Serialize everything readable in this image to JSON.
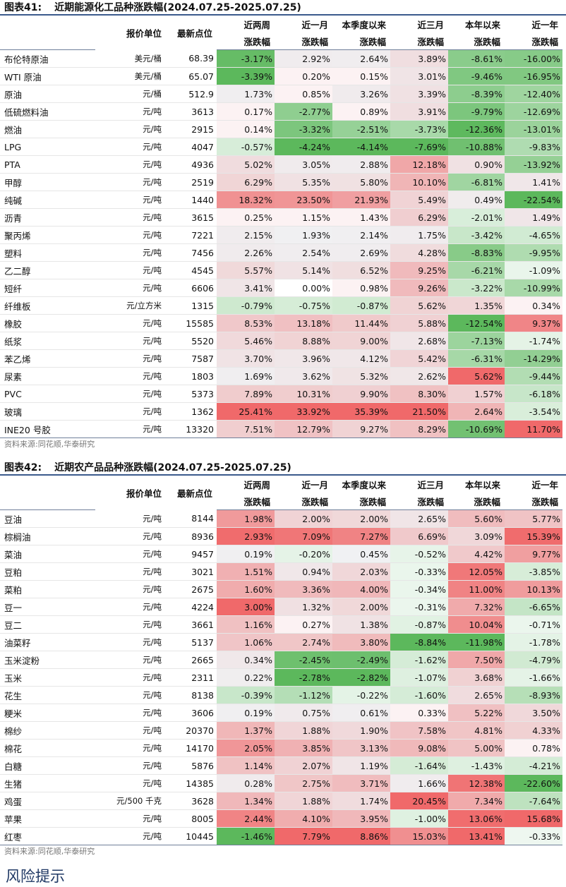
{
  "colors": {
    "title_rule": "#3b5a8c",
    "neg_strong": "#5cb85c",
    "pos_strong": "#f0696a",
    "risk_heading": "#1f3864"
  },
  "energy": {
    "title_label": "图表41:",
    "title_text": "近期能源化工品种涨跌幅(2024.07.25-2025.07.25)",
    "headers": {
      "unit": "报价单位",
      "price": "最新点位",
      "col1": [
        "近两周",
        "涨跌幅"
      ],
      "col2": [
        "近一月",
        "涨跌幅"
      ],
      "col3": [
        "本季度以来",
        "涨跌幅"
      ],
      "col4": [
        "近三月",
        "涨跌幅"
      ],
      "col5": [
        "本年以来",
        "涨跌幅"
      ],
      "col6": [
        "近一年",
        "涨跌幅"
      ]
    },
    "rows": [
      [
        "布伦特原油",
        "美元/桶",
        "68.39",
        "-3.17%",
        "2.92%",
        "2.64%",
        "3.89%",
        "-8.61%",
        "-16.00%"
      ],
      [
        "WTI 原油",
        "美元/桶",
        "65.07",
        "-3.39%",
        "0.20%",
        "0.15%",
        "3.01%",
        "-9.46%",
        "-16.95%"
      ],
      [
        "原油",
        "元/桶",
        "512.9",
        "1.73%",
        "0.85%",
        "3.26%",
        "3.39%",
        "-8.39%",
        "-12.40%"
      ],
      [
        "低硫燃料油",
        "元/吨",
        "3613",
        "0.17%",
        "-2.77%",
        "0.89%",
        "3.91%",
        "-9.79%",
        "-12.69%"
      ],
      [
        "燃油",
        "元/吨",
        "2915",
        "0.14%",
        "-3.32%",
        "-2.51%",
        "-3.73%",
        "-12.36%",
        "-13.01%"
      ],
      [
        "LPG",
        "元/吨",
        "4047",
        "-0.57%",
        "-4.24%",
        "-4.14%",
        "-7.69%",
        "-10.88%",
        "-9.83%"
      ],
      [
        "PTA",
        "元/吨",
        "4936",
        "5.02%",
        "3.05%",
        "2.88%",
        "12.18%",
        "0.90%",
        "-13.92%"
      ],
      [
        "甲醇",
        "元/吨",
        "2519",
        "6.29%",
        "5.35%",
        "5.80%",
        "10.10%",
        "-6.81%",
        "1.41%"
      ],
      [
        "纯碱",
        "元/吨",
        "1440",
        "18.32%",
        "23.50%",
        "21.93%",
        "5.49%",
        "0.49%",
        "-22.54%"
      ],
      [
        "沥青",
        "元/吨",
        "3615",
        "0.25%",
        "1.15%",
        "1.43%",
        "6.29%",
        "-2.01%",
        "1.49%"
      ],
      [
        "聚丙烯",
        "元/吨",
        "7221",
        "2.15%",
        "1.93%",
        "2.14%",
        "1.75%",
        "-3.42%",
        "-4.65%"
      ],
      [
        "塑料",
        "元/吨",
        "7456",
        "2.26%",
        "2.54%",
        "2.69%",
        "4.28%",
        "-8.83%",
        "-9.95%"
      ],
      [
        "乙二醇",
        "元/吨",
        "4545",
        "5.57%",
        "5.14%",
        "6.52%",
        "9.25%",
        "-6.21%",
        "-1.09%"
      ],
      [
        "短纤",
        "元/吨",
        "6606",
        "3.41%",
        "0.00%",
        "0.98%",
        "9.26%",
        "-3.22%",
        "-10.99%"
      ],
      [
        "纤维板",
        "元/立方米",
        "1315",
        "-0.79%",
        "-0.75%",
        "-0.87%",
        "5.62%",
        "1.35%",
        "0.34%"
      ],
      [
        "橡胶",
        "元/吨",
        "15585",
        "8.53%",
        "13.18%",
        "11.44%",
        "5.88%",
        "-12.54%",
        "9.37%"
      ],
      [
        "纸浆",
        "元/吨",
        "5520",
        "5.46%",
        "8.88%",
        "9.00%",
        "2.68%",
        "-7.13%",
        "-1.74%"
      ],
      [
        "苯乙烯",
        "元/吨",
        "7587",
        "3.70%",
        "3.96%",
        "4.12%",
        "5.42%",
        "-6.31%",
        "-14.29%"
      ],
      [
        "尿素",
        "元/吨",
        "1803",
        "1.69%",
        "3.62%",
        "5.32%",
        "2.62%",
        "5.62%",
        "-9.44%"
      ],
      [
        "PVC",
        "元/吨",
        "5373",
        "7.89%",
        "10.31%",
        "9.90%",
        "8.30%",
        "1.57%",
        "-6.18%"
      ],
      [
        "玻璃",
        "元/吨",
        "1362",
        "25.41%",
        "33.92%",
        "35.39%",
        "21.50%",
        "2.64%",
        "-3.54%"
      ],
      [
        "INE20 号胶",
        "元/吨",
        "13320",
        "7.51%",
        "12.79%",
        "9.27%",
        "8.29%",
        "-10.69%",
        "11.70%"
      ]
    ],
    "source": "资料来源:同花顺,华泰研究"
  },
  "agri": {
    "title_label": "图表42:",
    "title_text": "近期农产品品种涨跌幅(2024.07.25-2025.07.25)",
    "headers": {
      "unit": "报价单位",
      "price": "最新点位",
      "col1": [
        "近两周",
        "涨跌幅"
      ],
      "col2": [
        "近一月",
        "涨跌幅"
      ],
      "col3": [
        "本季度以来",
        "涨跌幅"
      ],
      "col4": [
        "近三月",
        "涨跌幅"
      ],
      "col5": [
        "本年以来",
        "涨跌幅"
      ],
      "col6": [
        "近一年",
        "涨跌幅"
      ]
    },
    "rows": [
      [
        "豆油",
        "元/吨",
        "8144",
        "1.98%",
        "2.00%",
        "2.00%",
        "2.65%",
        "5.60%",
        "5.77%"
      ],
      [
        "棕榈油",
        "元/吨",
        "8936",
        "2.93%",
        "7.09%",
        "7.27%",
        "6.69%",
        "3.09%",
        "15.39%"
      ],
      [
        "菜油",
        "元/吨",
        "9457",
        "0.19%",
        "-0.20%",
        "0.45%",
        "-0.52%",
        "4.42%",
        "9.77%"
      ],
      [
        "豆粕",
        "元/吨",
        "3021",
        "1.51%",
        "0.94%",
        "2.03%",
        "-0.33%",
        "12.05%",
        "-3.85%"
      ],
      [
        "菜粕",
        "元/吨",
        "2675",
        "1.60%",
        "3.36%",
        "4.00%",
        "-0.34%",
        "11.00%",
        "10.13%"
      ],
      [
        "豆一",
        "元/吨",
        "4224",
        "3.00%",
        "1.32%",
        "2.00%",
        "-0.31%",
        "7.32%",
        "-6.65%"
      ],
      [
        "豆二",
        "元/吨",
        "3661",
        "1.16%",
        "0.27%",
        "1.38%",
        "-0.87%",
        "10.04%",
        "-0.71%"
      ],
      [
        "油菜籽",
        "元/吨",
        "5137",
        "1.06%",
        "2.74%",
        "3.80%",
        "-8.84%",
        "-11.98%",
        "-1.78%"
      ],
      [
        "玉米淀粉",
        "元/吨",
        "2665",
        "0.34%",
        "-2.45%",
        "-2.49%",
        "-1.62%",
        "7.50%",
        "-4.79%"
      ],
      [
        "玉米",
        "元/吨",
        "2311",
        "0.22%",
        "-2.78%",
        "-2.82%",
        "-1.07%",
        "3.68%",
        "-1.66%"
      ],
      [
        "花生",
        "元/吨",
        "8138",
        "-0.39%",
        "-1.12%",
        "-0.22%",
        "-1.60%",
        "2.65%",
        "-8.93%"
      ],
      [
        "粳米",
        "元/吨",
        "3606",
        "0.19%",
        "0.75%",
        "0.61%",
        "0.33%",
        "5.22%",
        "3.50%"
      ],
      [
        "棉纱",
        "元/吨",
        "20370",
        "1.37%",
        "1.88%",
        "1.90%",
        "7.58%",
        "4.81%",
        "4.33%"
      ],
      [
        "棉花",
        "元/吨",
        "14170",
        "2.05%",
        "3.85%",
        "3.13%",
        "9.08%",
        "5.00%",
        "0.78%"
      ],
      [
        "白糖",
        "元/吨",
        "5876",
        "1.14%",
        "2.07%",
        "1.19%",
        "-1.64%",
        "-1.43%",
        "-4.21%"
      ],
      [
        "生猪",
        "元/吨",
        "14385",
        "0.28%",
        "2.75%",
        "3.71%",
        "1.66%",
        "12.38%",
        "-22.60%"
      ],
      [
        "鸡蛋",
        "元/500 千克",
        "3628",
        "1.34%",
        "1.88%",
        "1.74%",
        "20.45%",
        "7.34%",
        "-7.64%"
      ],
      [
        "苹果",
        "元/吨",
        "8005",
        "2.44%",
        "4.10%",
        "3.95%",
        "-1.00%",
        "13.06%",
        "15.68%"
      ],
      [
        "红枣",
        "元/吨",
        "10445",
        "-1.46%",
        "7.79%",
        "8.86%",
        "15.03%",
        "13.41%",
        "-0.33%"
      ]
    ],
    "source": "资料来源:同花顺,华泰研究"
  },
  "risk_heading": "风险提示"
}
